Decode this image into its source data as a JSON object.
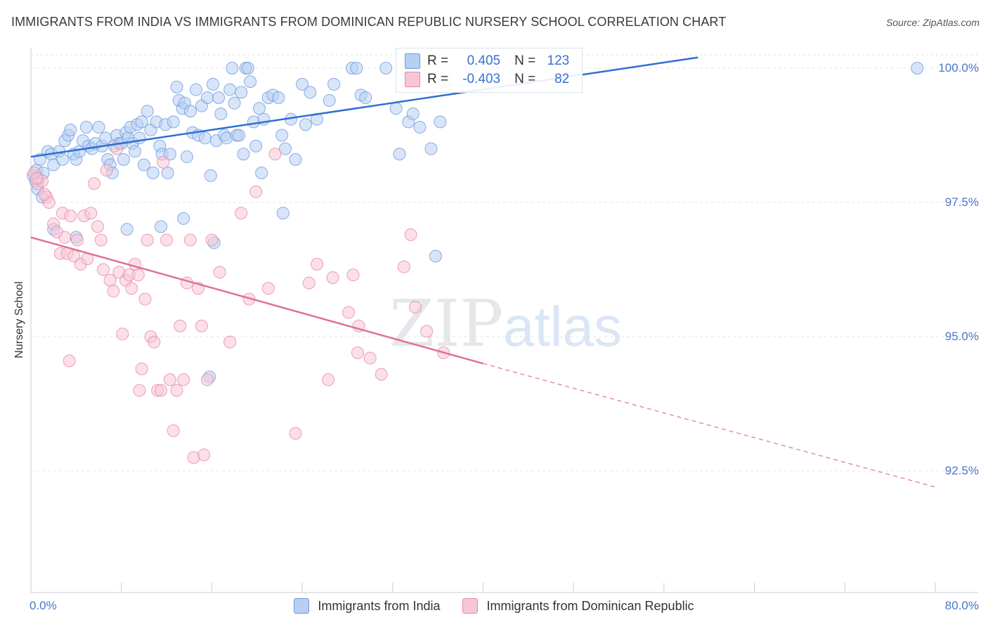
{
  "title": "IMMIGRANTS FROM INDIA VS IMMIGRANTS FROM DOMINICAN REPUBLIC NURSERY SCHOOL CORRELATION CHART",
  "source": "Source: ZipAtlas.com",
  "watermark": {
    "zip": "ZIP",
    "atlas": "atlas"
  },
  "stats": [
    {
      "r_label": "R =",
      "r_value": "0.405",
      "n_label": "N =",
      "n_value": "123",
      "color": "#6d9be0",
      "fill": "#b8cff3"
    },
    {
      "r_label": "R =",
      "r_value": "-0.403",
      "n_label": "N =",
      "n_value": "82",
      "color": "#e887a8",
      "fill": "#f7c6d6"
    }
  ],
  "chart_data": {
    "type": "scatter",
    "title": "IMMIGRANTS FROM INDIA VS IMMIGRANTS FROM DOMINICAN REPUBLIC NURSERY SCHOOL CORRELATION CHART",
    "xlabel": "",
    "ylabel": "Nursery School",
    "xlim": [
      0,
      80
    ],
    "ylim": [
      90.2,
      100.4
    ],
    "x_tick_labels": [
      "0.0%",
      "80.0%"
    ],
    "y_ticks": [
      100.0,
      97.5,
      95.0,
      92.5
    ],
    "y_tick_labels": [
      "100.0%",
      "97.5%",
      "95.0%",
      "92.5%"
    ],
    "grid": true,
    "legend_placement": "bottom",
    "series": [
      {
        "name": "Immigrants from India",
        "color": "#6d9be0",
        "fill": "#b8cff3",
        "trend": {
          "x": [
            0,
            59
          ],
          "y": [
            98.35,
            100.2
          ]
        },
        "points": [
          [
            0.2,
            98.0
          ],
          [
            0.4,
            97.9
          ],
          [
            0.5,
            98.1
          ],
          [
            0.7,
            97.95
          ],
          [
            0.6,
            97.75
          ],
          [
            0.8,
            98.3
          ],
          [
            1.0,
            97.6
          ],
          [
            1.1,
            98.05
          ],
          [
            1.5,
            98.45
          ],
          [
            1.8,
            98.4
          ],
          [
            2.0,
            98.2
          ],
          [
            2.5,
            98.45
          ],
          [
            2.8,
            98.3
          ],
          [
            3.0,
            98.65
          ],
          [
            3.3,
            98.75
          ],
          [
            3.5,
            98.85
          ],
          [
            3.8,
            98.4
          ],
          [
            4.0,
            98.3
          ],
          [
            4.3,
            98.45
          ],
          [
            4.6,
            98.65
          ],
          [
            4.9,
            98.9
          ],
          [
            5.1,
            98.55
          ],
          [
            5.4,
            98.5
          ],
          [
            5.7,
            98.6
          ],
          [
            6.0,
            98.9
          ],
          [
            6.3,
            98.55
          ],
          [
            6.6,
            98.7
          ],
          [
            6.8,
            98.3
          ],
          [
            7.0,
            98.2
          ],
          [
            7.2,
            98.05
          ],
          [
            7.4,
            98.55
          ],
          [
            7.6,
            98.75
          ],
          [
            7.8,
            98.6
          ],
          [
            8.0,
            98.6
          ],
          [
            8.2,
            98.3
          ],
          [
            8.4,
            98.8
          ],
          [
            8.6,
            98.7
          ],
          [
            8.8,
            98.9
          ],
          [
            9.0,
            98.6
          ],
          [
            9.2,
            98.45
          ],
          [
            9.4,
            98.95
          ],
          [
            9.6,
            98.7
          ],
          [
            9.8,
            99.0
          ],
          [
            10.0,
            98.2
          ],
          [
            10.3,
            99.2
          ],
          [
            10.6,
            98.85
          ],
          [
            10.8,
            98.05
          ],
          [
            11.1,
            99.0
          ],
          [
            11.4,
            98.55
          ],
          [
            11.6,
            98.4
          ],
          [
            11.9,
            98.95
          ],
          [
            12.1,
            98.05
          ],
          [
            12.3,
            98.4
          ],
          [
            12.6,
            99.0
          ],
          [
            12.9,
            99.65
          ],
          [
            13.1,
            99.4
          ],
          [
            13.4,
            99.25
          ],
          [
            13.6,
            99.35
          ],
          [
            13.8,
            98.35
          ],
          [
            14.1,
            99.2
          ],
          [
            14.3,
            98.8
          ],
          [
            14.6,
            99.6
          ],
          [
            14.8,
            98.75
          ],
          [
            15.1,
            99.3
          ],
          [
            15.4,
            98.7
          ],
          [
            15.6,
            99.45
          ],
          [
            15.9,
            98.0
          ],
          [
            16.1,
            99.7
          ],
          [
            16.4,
            98.65
          ],
          [
            16.6,
            99.45
          ],
          [
            16.8,
            99.15
          ],
          [
            17.1,
            98.75
          ],
          [
            17.3,
            98.7
          ],
          [
            17.6,
            99.6
          ],
          [
            17.8,
            100.0
          ],
          [
            18.0,
            99.35
          ],
          [
            18.2,
            98.75
          ],
          [
            18.4,
            98.75
          ],
          [
            18.6,
            99.55
          ],
          [
            18.8,
            98.4
          ],
          [
            19.0,
            100.0
          ],
          [
            19.2,
            100.0
          ],
          [
            19.4,
            99.75
          ],
          [
            19.7,
            99.0
          ],
          [
            19.9,
            98.55
          ],
          [
            20.2,
            99.25
          ],
          [
            20.4,
            98.05
          ],
          [
            20.6,
            99.05
          ],
          [
            21.0,
            99.45
          ],
          [
            21.4,
            99.5
          ],
          [
            21.9,
            99.45
          ],
          [
            22.2,
            98.75
          ],
          [
            22.5,
            98.5
          ],
          [
            23.0,
            99.05
          ],
          [
            23.4,
            98.3
          ],
          [
            24.0,
            99.7
          ],
          [
            24.3,
            98.95
          ],
          [
            24.7,
            99.55
          ],
          [
            25.3,
            99.05
          ],
          [
            26.4,
            99.4
          ],
          [
            26.8,
            99.7
          ],
          [
            28.4,
            100.0
          ],
          [
            28.8,
            100.0
          ],
          [
            29.2,
            99.5
          ],
          [
            29.6,
            99.45
          ],
          [
            31.4,
            100.0
          ],
          [
            32.3,
            99.25
          ],
          [
            32.6,
            98.4
          ],
          [
            33.4,
            99.0
          ],
          [
            33.8,
            99.15
          ],
          [
            34.4,
            98.9
          ],
          [
            35.4,
            98.5
          ],
          [
            36.2,
            99.0
          ],
          [
            36.6,
            99.75
          ],
          [
            39.0,
            100.0
          ],
          [
            40.8,
            100.0
          ],
          [
            78.4,
            100.0
          ],
          [
            2.0,
            97.0
          ],
          [
            4.0,
            96.85
          ],
          [
            8.5,
            97.0
          ],
          [
            11.5,
            97.05
          ],
          [
            13.5,
            97.2
          ],
          [
            16.2,
            96.75
          ],
          [
            22.3,
            97.3
          ],
          [
            35.8,
            96.5
          ],
          [
            15.8,
            94.25
          ]
        ]
      },
      {
        "name": "Immigrants from Dominican Republic",
        "color": "#e887a8",
        "fill": "#f7c6d6",
        "trend": {
          "x": [
            0,
            40
          ],
          "y": [
            96.85,
            94.5
          ]
        },
        "trend_dashed": {
          "x": [
            40,
            80
          ],
          "y": [
            94.5,
            92.2
          ]
        },
        "points": [
          [
            0.3,
            98.05
          ],
          [
            0.6,
            97.85
          ],
          [
            1.0,
            97.9
          ],
          [
            1.4,
            97.6
          ],
          [
            1.6,
            97.5
          ],
          [
            2.0,
            97.1
          ],
          [
            2.3,
            96.95
          ],
          [
            2.6,
            96.55
          ],
          [
            2.8,
            97.3
          ],
          [
            3.0,
            96.85
          ],
          [
            3.2,
            96.55
          ],
          [
            3.5,
            97.25
          ],
          [
            3.8,
            96.5
          ],
          [
            4.1,
            96.8
          ],
          [
            4.4,
            96.35
          ],
          [
            4.7,
            97.25
          ],
          [
            5.0,
            96.45
          ],
          [
            5.3,
            97.3
          ],
          [
            5.6,
            97.85
          ],
          [
            5.9,
            97.05
          ],
          [
            6.2,
            96.8
          ],
          [
            6.4,
            96.25
          ],
          [
            6.7,
            98.1
          ],
          [
            7.0,
            96.05
          ],
          [
            7.3,
            95.85
          ],
          [
            7.6,
            98.5
          ],
          [
            7.8,
            96.2
          ],
          [
            8.1,
            95.05
          ],
          [
            8.4,
            96.05
          ],
          [
            8.7,
            96.15
          ],
          [
            8.9,
            95.9
          ],
          [
            9.2,
            96.35
          ],
          [
            9.5,
            96.15
          ],
          [
            9.8,
            94.4
          ],
          [
            10.1,
            95.7
          ],
          [
            10.3,
            96.8
          ],
          [
            10.6,
            95.0
          ],
          [
            10.9,
            94.9
          ],
          [
            11.2,
            94.0
          ],
          [
            11.5,
            94.0
          ],
          [
            11.7,
            98.25
          ],
          [
            12.0,
            96.8
          ],
          [
            12.3,
            94.2
          ],
          [
            12.6,
            93.25
          ],
          [
            12.9,
            94.0
          ],
          [
            13.2,
            95.2
          ],
          [
            13.5,
            94.2
          ],
          [
            13.8,
            96.0
          ],
          [
            14.1,
            96.8
          ],
          [
            14.4,
            92.75
          ],
          [
            14.8,
            95.9
          ],
          [
            15.1,
            95.2
          ],
          [
            15.3,
            92.8
          ],
          [
            15.6,
            94.2
          ],
          [
            16.0,
            96.8
          ],
          [
            16.7,
            96.2
          ],
          [
            17.6,
            94.9
          ],
          [
            18.6,
            97.3
          ],
          [
            19.3,
            95.7
          ],
          [
            19.9,
            97.7
          ],
          [
            21.0,
            95.9
          ],
          [
            21.6,
            98.4
          ],
          [
            23.4,
            93.2
          ],
          [
            24.6,
            96.0
          ],
          [
            25.3,
            96.35
          ],
          [
            26.3,
            94.2
          ],
          [
            26.7,
            96.1
          ],
          [
            28.1,
            95.45
          ],
          [
            28.9,
            94.7
          ],
          [
            28.5,
            96.15
          ],
          [
            29.0,
            95.2
          ],
          [
            30.0,
            94.6
          ],
          [
            31.0,
            94.3
          ],
          [
            33.0,
            96.3
          ],
          [
            33.6,
            96.9
          ],
          [
            34.0,
            95.55
          ],
          [
            35.0,
            95.1
          ],
          [
            36.5,
            94.7
          ],
          [
            0.5,
            97.95
          ],
          [
            1.2,
            97.65
          ],
          [
            3.4,
            94.55
          ],
          [
            9.6,
            94.0
          ]
        ]
      }
    ]
  }
}
